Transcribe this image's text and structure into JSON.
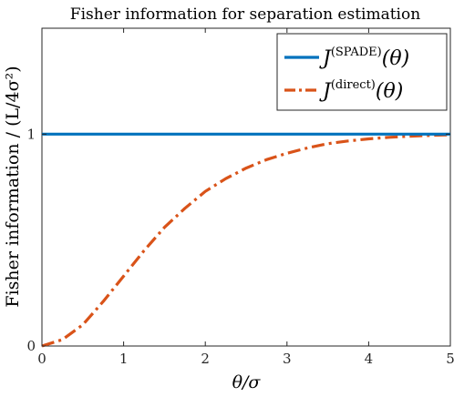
{
  "chart_data": {
    "type": "line",
    "title": "Fisher information for separation estimation",
    "xlabel": "θ/σ",
    "ylabel": "Fisher information / (L/4σ²)",
    "xlim": [
      0,
      5
    ],
    "ylim": [
      0,
      1.5
    ],
    "x_ticks": [
      0,
      1,
      2,
      3,
      4,
      5
    ],
    "x_tick_labels": [
      "0",
      "1",
      "2",
      "3",
      "4",
      "5"
    ],
    "y_ticks": [
      0,
      1
    ],
    "y_tick_labels": [
      "0",
      "1"
    ],
    "grid": false,
    "legend_position": "top-right",
    "series": [
      {
        "name": "J(SPADE)(θ)",
        "legend_symbol": "J",
        "legend_superscript": "(SPADE)",
        "legend_argument": "(θ)",
        "color": "#0072BD",
        "line_style": "solid",
        "x": [
          0,
          1,
          2,
          3,
          4,
          5
        ],
        "y": [
          1,
          1,
          1,
          1,
          1,
          1
        ]
      },
      {
        "name": "J(direct)(θ)",
        "legend_symbol": "J",
        "legend_superscript": "(direct)",
        "legend_argument": "(θ)",
        "color": "#D95319",
        "line_style": "dash-dot",
        "x": [
          0,
          0.25,
          0.5,
          0.75,
          1,
          1.25,
          1.5,
          1.75,
          2,
          2.25,
          2.5,
          2.75,
          3,
          3.25,
          3.5,
          3.75,
          4,
          4.25,
          4.5,
          4.75,
          5
        ],
        "y": [
          0,
          0.03,
          0.1,
          0.21,
          0.33,
          0.45,
          0.56,
          0.65,
          0.73,
          0.79,
          0.84,
          0.88,
          0.91,
          0.935,
          0.955,
          0.968,
          0.978,
          0.985,
          0.99,
          0.994,
          0.997
        ]
      }
    ]
  }
}
